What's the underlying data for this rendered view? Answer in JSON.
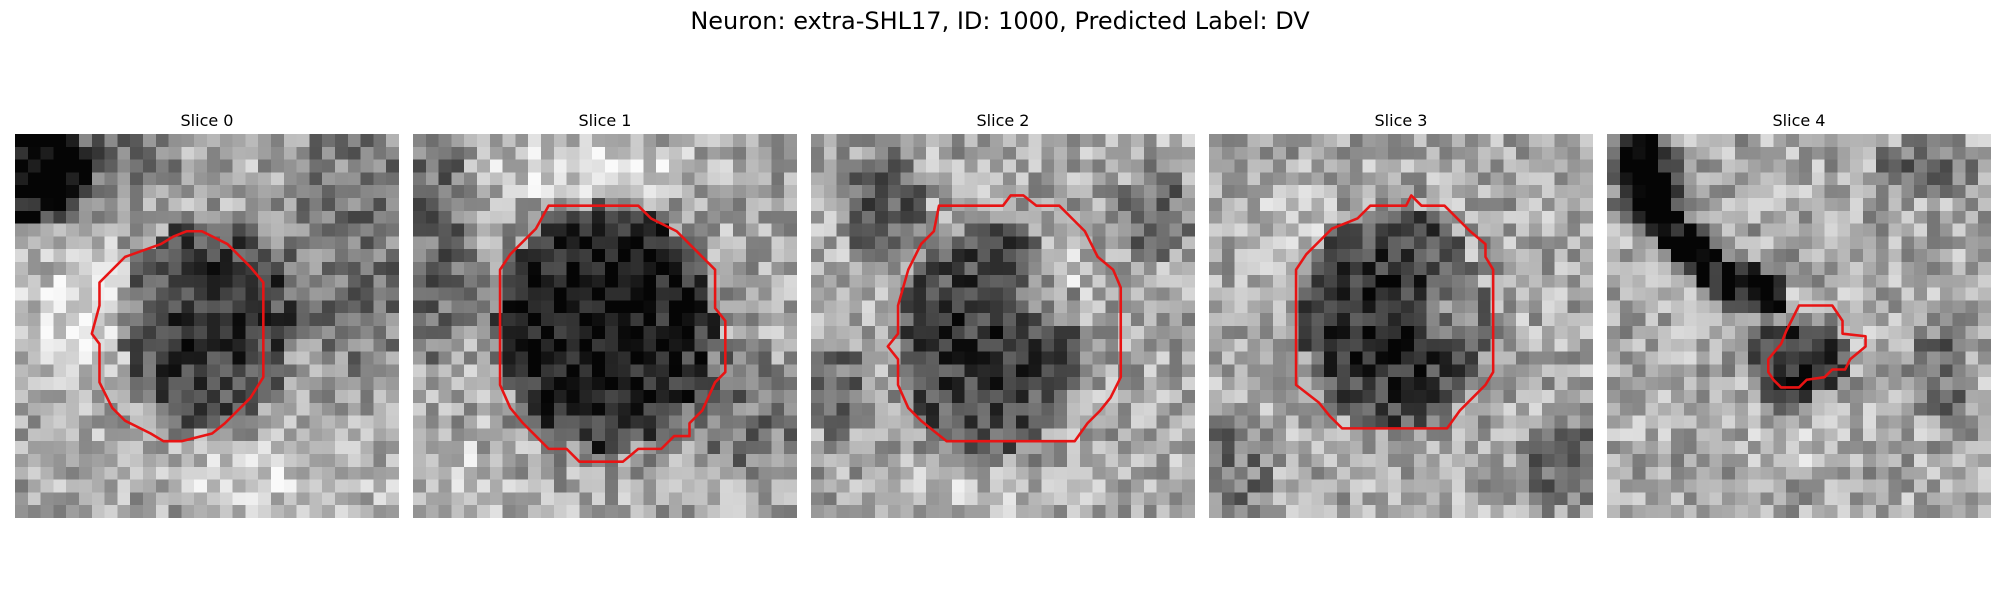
{
  "figure": {
    "title": "Neuron: extra-SHL17, ID: 1000, Predicted Label: DV"
  },
  "panels": [
    {
      "title": "Slice 0"
    },
    {
      "title": "Slice 1"
    },
    {
      "title": "Slice 2"
    },
    {
      "title": "Slice 3"
    },
    {
      "title": "Slice 4"
    }
  ],
  "style": {
    "contour_color": "#e81414",
    "image_colormap": "grayscale"
  }
}
